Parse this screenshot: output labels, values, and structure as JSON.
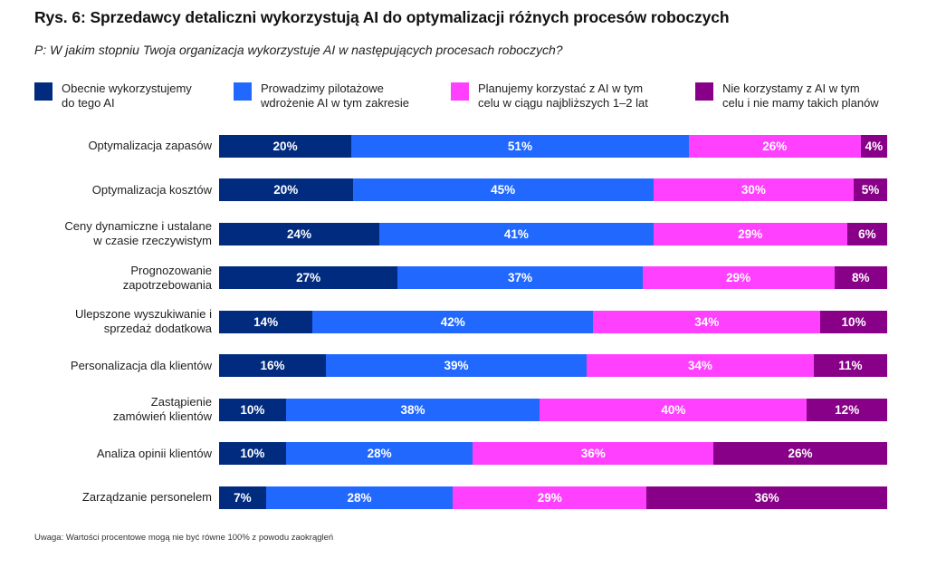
{
  "title": "Rys. 6: Sprzedawcy detaliczni wykorzystują AI do optymalizacji różnych procesów roboczych",
  "subtitle": "P: W jakim stopniu Twoja organizacja wykorzystuje AI w następujących procesach roboczych?",
  "note": "Uwaga: Wartości procentowe mogą nie być równe 100% z powodu zaokrągleń",
  "colors": {
    "current": "#002B7F",
    "pilot": "#2168FF",
    "planned": "#FF40FF",
    "none": "#880088"
  },
  "legend": [
    {
      "key": "current",
      "lines": [
        "Obecnie wykorzystujemy",
        "do tego AI"
      ]
    },
    {
      "key": "pilot",
      "lines": [
        "Prowadzimy pilotażowe",
        "wdrożenie AI w tym zakresie"
      ]
    },
    {
      "key": "planned",
      "lines": [
        "Planujemy korzystać z AI w tym",
        "celu w ciągu najbliższych 1–2 lat"
      ]
    },
    {
      "key": "none",
      "lines": [
        "Nie korzystamy z AI w tym",
        "celu i nie mamy takich planów"
      ]
    }
  ],
  "chart_data": {
    "type": "bar",
    "orientation": "horizontal",
    "stacked": true,
    "normalized": "100%",
    "title": "Rys. 6: Sprzedawcy detaliczni wykorzystują AI do optymalizacji różnych procesów roboczych",
    "subtitle": "P: W jakim stopniu Twoja organizacja wykorzystuje AI w następujących procesach roboczych?",
    "xlabel": "",
    "ylabel": "",
    "legend_position": "top",
    "grid": false,
    "categories": [
      [
        "Optymalizacja zapasów"
      ],
      [
        "Optymalizacja kosztów"
      ],
      [
        "Ceny dynamiczne i ustalane",
        "w czasie rzeczywistym"
      ],
      [
        "Prognozowanie",
        "zapotrzebowania"
      ],
      [
        "Ulepszone wyszukiwanie i",
        "sprzedaż dodatkowa"
      ],
      [
        "Personalizacja dla klientów"
      ],
      [
        "Zastąpienie",
        "zamówień klientów"
      ],
      [
        "Analiza opinii klientów"
      ],
      [
        "Zarządzanie personelem"
      ]
    ],
    "series": [
      {
        "key": "current",
        "name": "Obecnie wykorzystujemy do tego AI",
        "values": [
          20,
          20,
          24,
          27,
          14,
          16,
          10,
          10,
          7
        ]
      },
      {
        "key": "pilot",
        "name": "Prowadzimy pilotażowe wdrożenie AI w tym zakresie",
        "values": [
          51,
          45,
          41,
          37,
          42,
          39,
          38,
          28,
          28
        ]
      },
      {
        "key": "planned",
        "name": "Planujemy korzystać z AI w tym celu w ciągu najbliższych 1–2 lat",
        "values": [
          26,
          30,
          29,
          29,
          34,
          34,
          40,
          36,
          29
        ]
      },
      {
        "key": "none",
        "name": "Nie korzystamy z AI w tym celu i nie mamy takich planów",
        "values": [
          4,
          5,
          6,
          8,
          10,
          11,
          12,
          26,
          36
        ]
      }
    ],
    "value_suffix": "%"
  }
}
